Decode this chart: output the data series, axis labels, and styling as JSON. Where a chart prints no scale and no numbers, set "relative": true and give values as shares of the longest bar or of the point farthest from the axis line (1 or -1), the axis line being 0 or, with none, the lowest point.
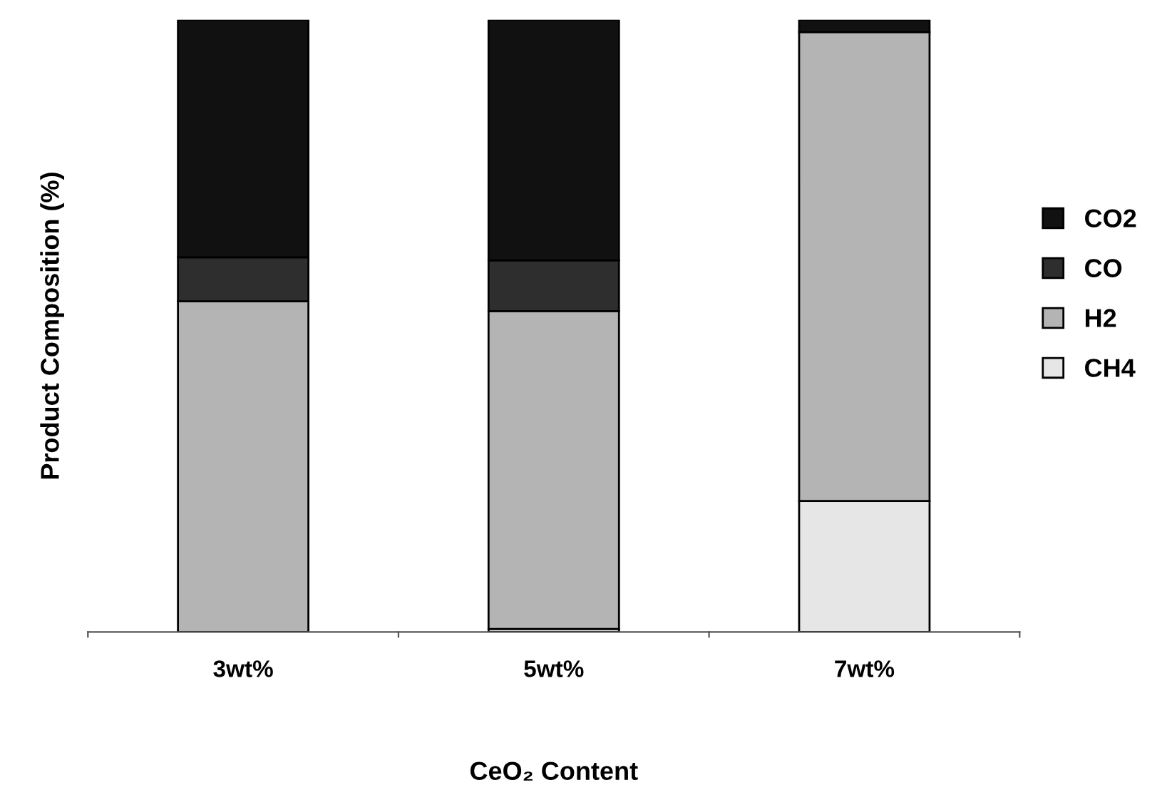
{
  "chart_data": {
    "type": "bar",
    "stacked": true,
    "relative": true,
    "xlabel": "CeO₂ Content",
    "ylabel": "Product Composition (%)",
    "legend": "right",
    "categories": [
      "3wt%",
      "5wt%",
      "7wt%"
    ],
    "series": [
      {
        "name": "CH4",
        "color": "#e6e6e6",
        "values": [
          0,
          0.005,
          0.214
        ]
      },
      {
        "name": "H2",
        "color": "#b4b4b4",
        "values": [
          0.54,
          0.519,
          0.766
        ]
      },
      {
        "name": "CO",
        "color": "#2e2e2e",
        "values": [
          0.072,
          0.083,
          0
        ]
      },
      {
        "name": "CO2",
        "color": "#111111",
        "values": [
          0.388,
          0.393,
          0.02
        ]
      }
    ]
  }
}
